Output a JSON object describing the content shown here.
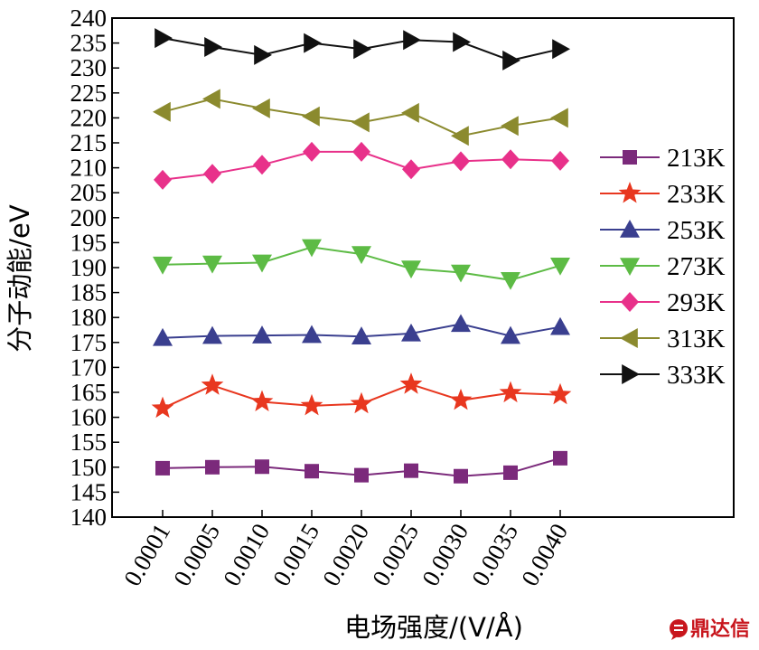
{
  "chart_data": {
    "type": "line",
    "xlabel": "电场强度/(V/Å)",
    "ylabel": "分子动能/eV",
    "categories": [
      "0.0001",
      "0.0005",
      "0.0010",
      "0.0015",
      "0.0020",
      "0.0025",
      "0.0030",
      "0.0035",
      "0.0040"
    ],
    "ylim": [
      140,
      240
    ],
    "yticks": [
      140,
      145,
      150,
      155,
      160,
      165,
      170,
      175,
      180,
      185,
      190,
      195,
      200,
      205,
      210,
      215,
      220,
      225,
      230,
      235,
      240
    ],
    "grid": false,
    "legend_position": "right",
    "series": [
      {
        "name": "213K",
        "color": "#7b2a7b",
        "marker": "square",
        "values": [
          149.8,
          150.0,
          150.1,
          149.2,
          148.4,
          149.3,
          148.2,
          148.9,
          151.8
        ]
      },
      {
        "name": "233K",
        "color": "#e8371f",
        "marker": "star",
        "values": [
          161.8,
          166.4,
          163.1,
          162.3,
          162.7,
          166.6,
          163.4,
          164.9,
          164.5
        ]
      },
      {
        "name": "253K",
        "color": "#3a3f8f",
        "marker": "triangle-up",
        "values": [
          175.9,
          176.3,
          176.4,
          176.5,
          176.2,
          176.8,
          178.7,
          176.3,
          178.1
        ]
      },
      {
        "name": "273K",
        "color": "#5dbb45",
        "marker": "triangle-down",
        "values": [
          190.6,
          190.8,
          191.0,
          194.1,
          192.7,
          189.8,
          189.0,
          187.5,
          190.4
        ]
      },
      {
        "name": "293K",
        "color": "#e8318a",
        "marker": "diamond",
        "values": [
          207.6,
          208.8,
          210.6,
          213.2,
          213.2,
          209.7,
          211.3,
          211.7,
          211.4
        ]
      },
      {
        "name": "313K",
        "color": "#8b8a2e",
        "marker": "triangle-left",
        "values": [
          221.2,
          223.8,
          221.9,
          220.3,
          219.1,
          221.0,
          216.4,
          218.4,
          220.0
        ]
      },
      {
        "name": "333K",
        "color": "#111111",
        "marker": "triangle-right",
        "values": [
          236.0,
          234.2,
          232.6,
          235.0,
          233.8,
          235.6,
          235.2,
          231.5,
          233.8
        ]
      }
    ]
  },
  "watermark": {
    "text": "鼎达信",
    "icon": "chat-bubble-logo-icon",
    "color": "#c8161d"
  }
}
